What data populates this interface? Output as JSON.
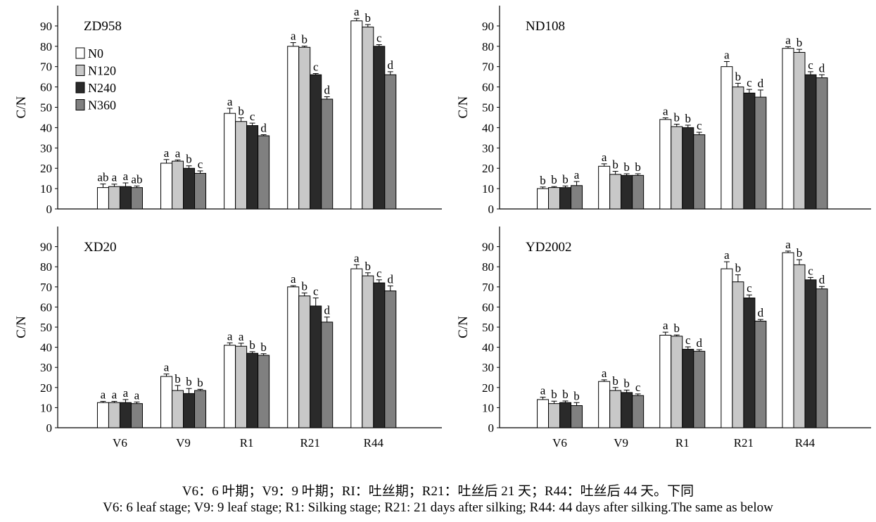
{
  "chart_data": [
    {
      "type": "bar",
      "title": "ZD958",
      "ylabel": "C/N",
      "xlabel": "",
      "ylim": [
        0,
        100
      ],
      "yticks": [
        0,
        10,
        20,
        30,
        40,
        50,
        60,
        70,
        80,
        90
      ],
      "categories": [
        "V6",
        "V9",
        "R1",
        "R21",
        "R44"
      ],
      "show_x_tick_labels": false,
      "show_legend": true,
      "legend_position": "top-left",
      "series": [
        {
          "name": "N0",
          "color": "#ffffff",
          "values": [
            10.5,
            22.5,
            47,
            80,
            92.5
          ],
          "errors": [
            1.8,
            1.8,
            2.5,
            1.8,
            1.2
          ],
          "letters": [
            "ab",
            "a",
            "a",
            "a",
            "a"
          ]
        },
        {
          "name": "N120",
          "color": "#c8c8c8",
          "values": [
            11,
            23.5,
            43,
            79.5,
            89.5
          ],
          "errors": [
            1.2,
            0.6,
            1.8,
            0.6,
            1.2
          ],
          "letters": [
            "a",
            "a",
            "b",
            "b",
            "b"
          ]
        },
        {
          "name": "N240",
          "color": "#2a2a2a",
          "values": [
            11,
            20,
            41,
            66,
            80
          ],
          "errors": [
            1.8,
            1.2,
            1.2,
            0.6,
            0.8
          ],
          "letters": [
            "a",
            "b",
            "c",
            "c",
            "c"
          ]
        },
        {
          "name": "N360",
          "color": "#808080",
          "values": [
            10.5,
            17.5,
            36,
            54,
            66
          ],
          "errors": [
            0.8,
            1.2,
            0.5,
            1.2,
            1.5
          ],
          "letters": [
            "ab",
            "c",
            "d",
            "d",
            "d"
          ]
        }
      ]
    },
    {
      "type": "bar",
      "title": "ND108",
      "ylabel": "C/N",
      "xlabel": "",
      "ylim": [
        0,
        100
      ],
      "yticks": [
        0,
        10,
        20,
        30,
        40,
        50,
        60,
        70,
        80,
        90
      ],
      "categories": [
        "V6",
        "V9",
        "R1",
        "R21",
        "R44"
      ],
      "show_x_tick_labels": false,
      "show_legend": false,
      "series": [
        {
          "name": "N0",
          "color": "#ffffff",
          "values": [
            10,
            21,
            44,
            70,
            79
          ],
          "errors": [
            0.8,
            1.2,
            0.8,
            2.5,
            0.8
          ],
          "letters": [
            "b",
            "a",
            "a",
            "a",
            "a"
          ]
        },
        {
          "name": "N120",
          "color": "#c8c8c8",
          "values": [
            10.5,
            17,
            40.5,
            60,
            77
          ],
          "errors": [
            0.5,
            1.5,
            1.2,
            1.8,
            1.5
          ],
          "letters": [
            "b",
            "b",
            "b",
            "b",
            "b"
          ]
        },
        {
          "name": "N240",
          "color": "#2a2a2a",
          "values": [
            10.5,
            16.5,
            40,
            57,
            66
          ],
          "errors": [
            0.8,
            0.8,
            1.2,
            1.8,
            1.5
          ],
          "letters": [
            "b",
            "b",
            "b",
            "c",
            "c"
          ]
        },
        {
          "name": "N360",
          "color": "#808080",
          "values": [
            11.5,
            16.5,
            36.5,
            55,
            64.5
          ],
          "errors": [
            2.0,
            0.8,
            1.2,
            3.5,
            1.5
          ],
          "letters": [
            "a",
            "b",
            "c",
            "d",
            "d"
          ]
        }
      ]
    },
    {
      "type": "bar",
      "title": "XD20",
      "ylabel": "C/N",
      "xlabel": "",
      "ylim": [
        0,
        100
      ],
      "yticks": [
        0,
        10,
        20,
        30,
        40,
        50,
        60,
        70,
        80,
        90
      ],
      "categories": [
        "V6",
        "V9",
        "R1",
        "R21",
        "R44"
      ],
      "show_x_tick_labels": true,
      "show_legend": false,
      "series": [
        {
          "name": "N0",
          "color": "#ffffff",
          "values": [
            12.5,
            25.5,
            41,
            70,
            79
          ],
          "errors": [
            0.6,
            1.2,
            1.2,
            0.6,
            2.0
          ],
          "letters": [
            "a",
            "a",
            "a",
            "a",
            "a"
          ]
        },
        {
          "name": "N120",
          "color": "#c8c8c8",
          "values": [
            12.5,
            18.5,
            40.5,
            65.5,
            75.5
          ],
          "errors": [
            0.6,
            2.5,
            1.5,
            1.5,
            1.5
          ],
          "letters": [
            "a",
            "b",
            "a",
            "b",
            "b"
          ]
        },
        {
          "name": "N240",
          "color": "#2a2a2a",
          "values": [
            12.5,
            17,
            37,
            60.5,
            72
          ],
          "errors": [
            1.5,
            2.5,
            0.8,
            4.0,
            1.5
          ],
          "letters": [
            "a",
            "b",
            "b",
            "c",
            "c"
          ]
        },
        {
          "name": "N360",
          "color": "#808080",
          "values": [
            12,
            18.5,
            36,
            52.5,
            68
          ],
          "errors": [
            0.8,
            0.6,
            0.8,
            2.5,
            2.5
          ],
          "letters": [
            "a",
            "b",
            "b",
            "d",
            "d"
          ]
        }
      ]
    },
    {
      "type": "bar",
      "title": "YD2002",
      "ylabel": "C/N",
      "xlabel": "",
      "ylim": [
        0,
        100
      ],
      "yticks": [
        0,
        10,
        20,
        30,
        40,
        50,
        60,
        70,
        80,
        90
      ],
      "categories": [
        "V6",
        "V9",
        "R1",
        "R21",
        "R44"
      ],
      "show_x_tick_labels": true,
      "show_legend": false,
      "series": [
        {
          "name": "N0",
          "color": "#ffffff",
          "values": [
            14,
            23,
            46,
            79,
            87
          ],
          "errors": [
            1.2,
            0.8,
            1.5,
            3.5,
            0.8
          ],
          "letters": [
            "a",
            "a",
            "a",
            "a",
            "a"
          ]
        },
        {
          "name": "N120",
          "color": "#c8c8c8",
          "values": [
            12,
            18.5,
            45.5,
            72.5,
            81
          ],
          "errors": [
            1.2,
            1.5,
            0.6,
            3.5,
            2.5
          ],
          "letters": [
            "b",
            "b",
            "b",
            "b",
            "b"
          ]
        },
        {
          "name": "N240",
          "color": "#2a2a2a",
          "values": [
            12.5,
            17.5,
            39,
            64.5,
            73.5
          ],
          "errors": [
            0.8,
            1.2,
            1.2,
            1.5,
            1.2
          ],
          "letters": [
            "b",
            "b",
            "c",
            "c",
            "c"
          ]
        },
        {
          "name": "N360",
          "color": "#808080",
          "values": [
            11,
            16,
            38,
            53,
            69
          ],
          "errors": [
            1.5,
            0.8,
            0.8,
            0.8,
            1.2
          ],
          "letters": [
            "b",
            "c",
            "d",
            "d",
            "d"
          ]
        }
      ]
    }
  ],
  "caption": {
    "chinese": "V6：6 叶期；V9：9 叶期；RI：吐丝期；R21：吐丝后 21 天；R44：吐丝后 44 天。下同",
    "english": "V6: 6 leaf stage; V9: 9 leaf stage; R1: Silking stage; R21: 21 days after silking; R44: 44 days after silking.The same as below"
  }
}
